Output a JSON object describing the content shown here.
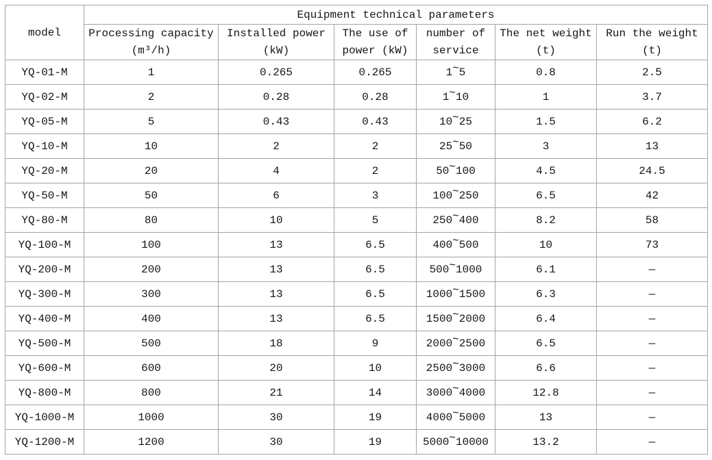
{
  "page": {
    "background_color": "#ffffff",
    "border_color": "#a3a3a3",
    "text_color": "#151515"
  },
  "chart_data": {
    "type": "table",
    "title": "Equipment technical parameters",
    "model_header": "model",
    "columns": [
      {
        "name": "processing-capacity",
        "line1": "Processing capacity",
        "line2": "(m³/h)"
      },
      {
        "name": "installed-power",
        "line1": "Installed power",
        "line2": "(kW)"
      },
      {
        "name": "use-of-power",
        "line1": "The use of",
        "line2": "power (kW)"
      },
      {
        "name": "number-of-service",
        "line1": "number of",
        "line2": "service"
      },
      {
        "name": "net-weight",
        "line1": "The net weight",
        "line2": "(t)"
      },
      {
        "name": "run-weight",
        "line1": "Run the weight",
        "line2": "(t)"
      }
    ],
    "rows": [
      [
        "YQ-01-M",
        "1",
        "0.265",
        "0.265",
        "1~5",
        "0.8",
        "2.5"
      ],
      [
        "YQ-02-M",
        "2",
        "0.28",
        "0.28",
        "1~10",
        "1",
        "3.7"
      ],
      [
        "YQ-05-M",
        "5",
        "0.43",
        "0.43",
        "10~25",
        "1.5",
        "6.2"
      ],
      [
        "YQ-10-M",
        "10",
        "2",
        "2",
        "25~50",
        "3",
        "13"
      ],
      [
        "YQ-20-M",
        "20",
        "4",
        "2",
        "50~100",
        "4.5",
        "24.5"
      ],
      [
        "YQ-50-M",
        "50",
        "6",
        "3",
        "100~250",
        "6.5",
        "42"
      ],
      [
        "YQ-80-M",
        "80",
        "10",
        "5",
        "250~400",
        "8.2",
        "58"
      ],
      [
        "YQ-100-M",
        "100",
        "13",
        "6.5",
        "400~500",
        "10",
        "73"
      ],
      [
        "YQ-200-M",
        "200",
        "13",
        "6.5",
        "500~1000",
        "6.1",
        "—"
      ],
      [
        "YQ-300-M",
        "300",
        "13",
        "6.5",
        "1000~1500",
        "6.3",
        "—"
      ],
      [
        "YQ-400-M",
        "400",
        "13",
        "6.5",
        "1500~2000",
        "6.4",
        "—"
      ],
      [
        "YQ-500-M",
        "500",
        "18",
        "9",
        "2000~2500",
        "6.5",
        "—"
      ],
      [
        "YQ-600-M",
        "600",
        "20",
        "10",
        "2500~3000",
        "6.6",
        "—"
      ],
      [
        "YQ-800-M",
        "800",
        "21",
        "14",
        "3000~4000",
        "12.8",
        "—"
      ],
      [
        "YQ-1000-M",
        "1000",
        "30",
        "19",
        "4000~5000",
        "13",
        "—"
      ],
      [
        "YQ-1200-M",
        "1200",
        "30",
        "19",
        "5000~10000",
        "13.2",
        "—"
      ]
    ]
  }
}
